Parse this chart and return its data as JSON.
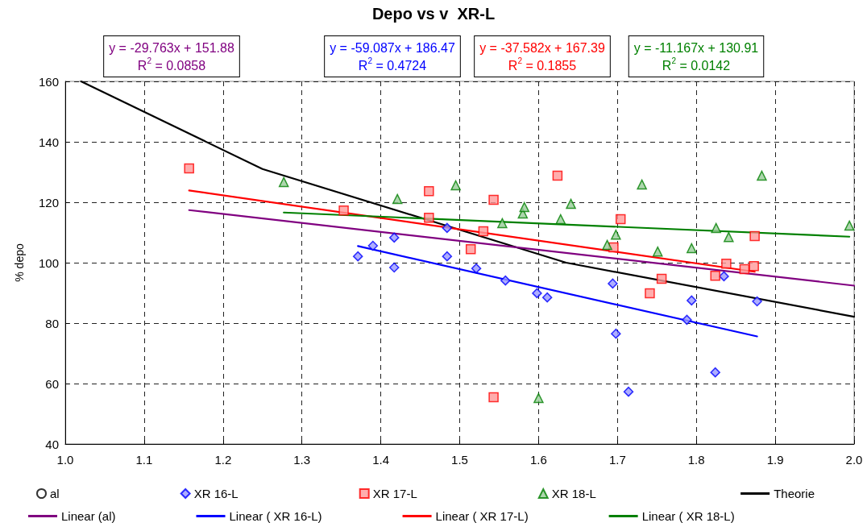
{
  "chart_data": {
    "type": "scatter",
    "title": "Depo vs v  XR-L",
    "ylabel": "% depo",
    "xlim": [
      1.0,
      2.0
    ],
    "xticks": [
      {
        "value": 1.0,
        "label": "1.0"
      },
      1.1,
      1.2,
      1.3,
      1.4,
      1.5,
      1.6,
      1.7,
      1.8,
      1.9,
      {
        "value": 2.0,
        "label": "2.0"
      }
    ],
    "ylim": [
      40,
      160
    ],
    "yticks": [
      40,
      60,
      80,
      100,
      120,
      140,
      160
    ],
    "grid": true,
    "legend": "bottom",
    "annotations": [
      "y = -29.763x + 151.88\nR$^{2}$ = 0.0858",
      "y = -59.087x + 186.47\nR$^{2}$ = 0.4724",
      "y = -37.582x + 167.39\nR$^{2}$ = 0.1855",
      "y = -11.167x + 130.91\nR$^{2}$ = 0.0142"
    ],
    "series": [
      {
        "name": "al",
        "marker": "circle",
        "color": "#000000"
      },
      {
        "name": "XR 16-L",
        "marker": "diamond",
        "color": "#0000ff",
        "x": [
          1.371,
          1.39,
          1.417,
          1.417,
          1.484,
          1.484,
          1.521,
          1.558,
          1.598,
          1.611,
          1.694,
          1.698,
          1.714,
          1.788,
          1.794,
          1.824,
          1.835,
          1.877
        ],
        "values": [
          102.1,
          105.6,
          108.3,
          98.4,
          111.5,
          102.1,
          98.1,
          94.1,
          89.9,
          88.5,
          93.1,
          76.5,
          57.3,
          81.1,
          87.5,
          63.7,
          95.5,
          87.2
        ]
      },
      {
        "name": "XR 17-L",
        "marker": "square",
        "color": "#ff0000",
        "x": [
          1.157,
          1.353,
          1.461,
          1.461,
          1.514,
          1.53,
          1.543,
          1.543,
          1.624,
          1.695,
          1.704,
          1.741,
          1.756,
          1.824,
          1.838,
          1.861,
          1.873,
          1.874
        ],
        "values": [
          131.2,
          117.3,
          123.7,
          114.9,
          104.5,
          110.4,
          120.8,
          55.5,
          128.8,
          105.1,
          114.4,
          89.9,
          94.7,
          95.7,
          99.7,
          97.9,
          98.9,
          108.8
        ]
      },
      {
        "name": "XR 18-L",
        "marker": "triangle",
        "color": "#008000",
        "x": [
          1.277,
          1.421,
          1.495,
          1.554,
          1.58,
          1.582,
          1.6,
          1.628,
          1.641,
          1.687,
          1.698,
          1.731,
          1.751,
          1.794,
          1.825,
          1.841,
          1.883,
          1.994
        ],
        "values": [
          126.7,
          121.1,
          125.6,
          113.1,
          116.3,
          118.4,
          55.2,
          114.4,
          119.5,
          105.9,
          109.3,
          125.9,
          103.7,
          104.8,
          111.5,
          108.5,
          128.8,
          112.3
        ]
      },
      {
        "name": "Theorie",
        "type": "line",
        "marker": "none",
        "color": "#000000",
        "x": [
          1.02,
          1.25,
          1.635,
          2.0
        ],
        "values": [
          160,
          131,
          100,
          82.1
        ]
      },
      {
        "name": "Linear (al)",
        "type": "line",
        "marker": "none",
        "color": "#800080",
        "x": [
          1.157,
          2.0
        ],
        "values": [
          117.4,
          92.4
        ]
      },
      {
        "name": "Linear ( XR 16-L)",
        "type": "line",
        "marker": "none",
        "color": "#0000ff",
        "x": [
          1.371,
          1.877
        ],
        "values": [
          105.5,
          75.6
        ]
      },
      {
        "name": "Linear ( XR 17-L)",
        "type": "line",
        "marker": "none",
        "color": "#ff0000",
        "x": [
          1.157,
          1.874
        ],
        "values": [
          123.9,
          97.0
        ]
      },
      {
        "name": "Linear ( XR 18-L)",
        "type": "line",
        "marker": "none",
        "color": "#008000",
        "x": [
          1.277,
          1.994
        ],
        "values": [
          116.6,
          108.6
        ]
      }
    ]
  }
}
